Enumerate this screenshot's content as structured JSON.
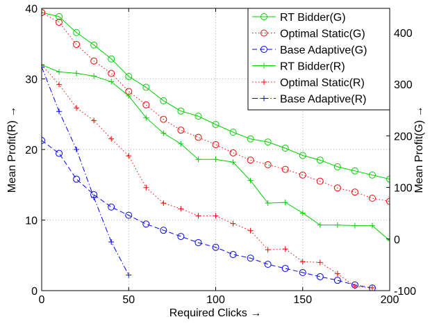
{
  "chart_data": {
    "type": "line",
    "x_label": "Required Clicks →",
    "y_label": "Mean  Profit(R) →",
    "y2_label": "Mean  Profit(G) →",
    "x": [
      0,
      10,
      20,
      30,
      40,
      50,
      60,
      70,
      80,
      90,
      100,
      110,
      120,
      130,
      140,
      150,
      160,
      170,
      180,
      190,
      200
    ],
    "xlim": [
      0,
      200
    ],
    "xticks": [
      0,
      50,
      100,
      150,
      200
    ],
    "ylim": [
      0,
      40
    ],
    "yticks": [
      0,
      10,
      20,
      30,
      40
    ],
    "y2lim": [
      -100,
      447
    ],
    "y2ticks": [
      -100,
      0,
      100,
      200,
      300,
      400
    ],
    "grid": true,
    "legend": "upper right",
    "series": [
      {
        "name": "RT Bidder(G)",
        "color": "#00d000",
        "axis": "y2",
        "marker": "circle",
        "dash": "solid",
        "values": [
          439,
          431,
          400,
          376,
          349,
          315,
          294,
          268,
          248,
          238,
          222,
          207,
          194,
          188,
          176,
          162,
          153,
          140,
          132,
          124,
          116
        ]
      },
      {
        "name": "Optimal Static(G)",
        "color": "#ff0000",
        "axis": "y2",
        "marker": "circle",
        "dash": "dotted",
        "values": [
          439,
          420,
          377,
          345,
          321,
          286,
          260,
          232,
          211,
          197,
          183,
          167,
          153,
          144,
          135,
          124,
          112,
          99,
          91,
          79,
          73
        ]
      },
      {
        "name": "Base Adaptive(G)",
        "color": "#0000ff",
        "axis": "y2",
        "marker": "circle",
        "dash": "dashed",
        "values": [
          191,
          166,
          116,
          86,
          62,
          46,
          29,
          17,
          5,
          -7,
          -16,
          -30,
          -37,
          -49,
          -57,
          -65,
          -73,
          -80,
          -89,
          -95,
          null
        ]
      },
      {
        "name": "RT Bidder(R)",
        "color": "#00d000",
        "axis": "y",
        "marker": "plus",
        "dash": "solid",
        "values": [
          32,
          31.0,
          30.8,
          30.4,
          29.6,
          27.6,
          24.5,
          22.3,
          20.8,
          18.6,
          18.6,
          18.2,
          15.6,
          12.4,
          12.5,
          11.0,
          9.3,
          9.3,
          9.2,
          9.2,
          7.1
        ]
      },
      {
        "name": "Optimal Static(R)",
        "color": "#ff0000",
        "axis": "y",
        "marker": "plus",
        "dash": "dotted",
        "values": [
          32,
          29.2,
          25.9,
          24.1,
          21.5,
          19.1,
          14.6,
          12.4,
          11.6,
          10.6,
          10.6,
          9.5,
          8.5,
          5.8,
          5.9,
          4.1,
          4.0,
          2.4,
          0.6,
          0.4,
          null
        ]
      },
      {
        "name": "Base Adaptive(R)",
        "color": "#0000ff",
        "axis": "y",
        "marker": "plus",
        "dash": "dashdot",
        "values": [
          31.7,
          25.4,
          20.0,
          13.2,
          6.9,
          2.2,
          null,
          null,
          null,
          null,
          null,
          null,
          null,
          null,
          null,
          null,
          null,
          null,
          null,
          null,
          null
        ]
      }
    ]
  }
}
